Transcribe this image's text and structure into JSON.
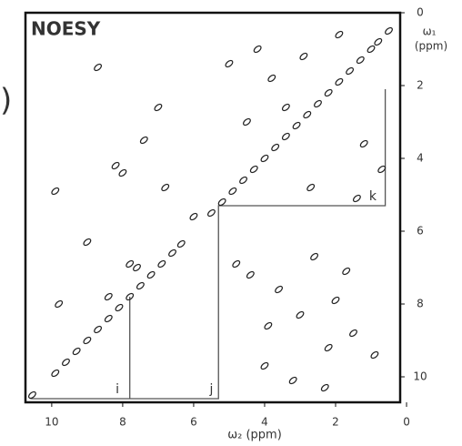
{
  "chart_data": {
    "type": "scatter",
    "title": "NOESY",
    "xlabel": "ω₂ (ppm)",
    "ylabel": [
      "ω₁",
      "(ppm)"
    ],
    "edge_text": ")",
    "color": "#222222",
    "xlim": [
      10.74,
      0.18
    ],
    "ylim": [
      0,
      10.7
    ],
    "xticks": [
      10,
      8,
      6,
      4,
      2,
      0
    ],
    "yticks": [
      0,
      2,
      4,
      6,
      8,
      10
    ],
    "x": [
      10.55,
      9.9,
      9.6,
      9.3,
      9.0,
      8.7,
      8.4,
      8.1,
      7.8,
      7.5,
      7.2,
      6.9,
      6.6,
      6.35,
      5.5,
      5.2,
      4.9,
      4.6,
      4.3,
      4.0,
      3.7,
      3.4,
      3.1,
      2.8,
      2.5,
      2.2,
      1.9,
      1.6,
      1.3,
      1.0,
      0.8,
      0.5,
      9.9,
      9.8,
      8.7,
      8.2,
      8.0,
      7.6,
      7.0,
      6.8,
      7.4,
      9.0,
      6.0,
      8.4,
      7.8,
      4.8,
      4.4,
      3.6,
      3.0,
      2.6,
      2.0,
      1.5,
      0.9,
      4.0,
      3.2,
      2.3,
      1.7,
      4.5,
      3.8,
      2.9,
      1.2,
      0.7,
      4.2,
      3.4,
      1.9,
      5.0,
      2.7,
      1.4,
      3.9,
      2.2
    ],
    "values": [
      10.5,
      9.9,
      9.6,
      9.3,
      9.0,
      8.7,
      8.4,
      8.1,
      7.8,
      7.5,
      7.2,
      6.9,
      6.6,
      6.35,
      5.5,
      5.2,
      4.9,
      4.6,
      4.3,
      4.0,
      3.7,
      3.4,
      3.1,
      2.8,
      2.5,
      2.2,
      1.9,
      1.6,
      1.3,
      1.0,
      0.8,
      0.5,
      4.9,
      8.0,
      1.5,
      4.2,
      4.4,
      7.0,
      2.6,
      4.8,
      3.5,
      6.3,
      5.6,
      7.8,
      6.9,
      6.9,
      7.2,
      7.6,
      8.3,
      6.7,
      7.9,
      8.8,
      9.4,
      9.7,
      10.1,
      10.3,
      7.1,
      3.0,
      1.8,
      1.2,
      3.6,
      4.3,
      1.0,
      2.6,
      0.6,
      1.4,
      4.8,
      5.1,
      8.6,
      9.2
    ],
    "path": {
      "x": [
        10.6,
        5.3,
        5.3,
        0.6,
        0.6,
        null,
        7.8,
        7.8
      ],
      "y": [
        10.6,
        10.6,
        5.3,
        5.3,
        2.1,
        null,
        7.8,
        10.6
      ]
    },
    "annotations": [
      {
        "label": "i",
        "x": 8.15,
        "y": 10.35
      },
      {
        "label": "j",
        "x": 5.5,
        "y": 10.35
      },
      {
        "label": "k",
        "x": 0.95,
        "y": 5.05
      }
    ]
  }
}
